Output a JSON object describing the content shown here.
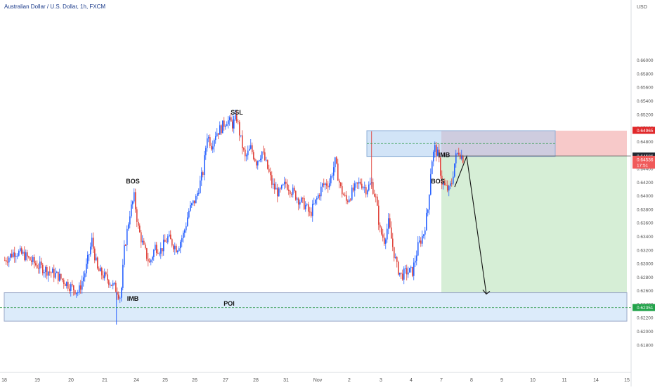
{
  "header": {
    "symbol_title": "Australian Dollar / U.S. Dollar, 1h, FXCM"
  },
  "price_axis": {
    "currency": "USD"
  },
  "badges": {
    "stop_price": "0.64965",
    "last_price": "0.64586",
    "current_price": "0.64536",
    "countdown": "17:51",
    "target_price": "0.62351"
  },
  "colors": {
    "up_candle": "#2962ff",
    "down_candle": "#e0453d",
    "stop_zone": "#f7c9c9",
    "profit_zone": "#d6eed6",
    "poi_zone": "#dcebfa",
    "stop_badge": "#e0282a",
    "last_badge": "#222831",
    "current_badge": "#f05a5a",
    "target_badge": "#22a34a"
  },
  "chart_data": {
    "type": "candlestick",
    "title": "Australian Dollar / U.S. Dollar, 1h, FXCM",
    "ylabel": "USD",
    "ylim": [
      0.6172,
      0.6682
    ],
    "y_ticks": [
      "0.66000",
      "0.65800",
      "0.65600",
      "0.65400",
      "0.65200",
      "0.65000",
      "0.64800",
      "0.64600",
      "0.64400",
      "0.64200",
      "0.64000",
      "0.63800",
      "0.63600",
      "0.63400",
      "0.63200",
      "0.63000",
      "0.62800",
      "0.62600",
      "0.62400",
      "0.62200",
      "0.62000",
      "0.61800"
    ],
    "x_ticks": [
      "18",
      "19",
      "20",
      "21",
      "24",
      "25",
      "26",
      "27",
      "28",
      "31",
      "Nov",
      "2",
      "3",
      "4",
      "7",
      "8",
      "9",
      "10",
      "11",
      "14",
      "15"
    ],
    "x_tick_index": [
      0,
      47,
      95,
      143,
      188,
      229,
      271,
      315,
      358,
      401,
      446,
      491,
      536,
      579,
      622,
      665,
      708,
      752,
      797,
      842,
      886
    ],
    "path_keypoints": [
      [
        0,
        0.6305
      ],
      [
        15,
        0.6318
      ],
      [
        28,
        0.6312
      ],
      [
        45,
        0.6298
      ],
      [
        60,
        0.629
      ],
      [
        75,
        0.6282
      ],
      [
        95,
        0.6265
      ],
      [
        105,
        0.6258
      ],
      [
        115,
        0.629
      ],
      [
        124,
        0.6334
      ],
      [
        132,
        0.629
      ],
      [
        148,
        0.6275
      ],
      [
        160,
        0.626
      ],
      [
        165,
        0.625
      ],
      [
        170,
        0.632
      ],
      [
        178,
        0.6375
      ],
      [
        184,
        0.6398
      ],
      [
        190,
        0.6352
      ],
      [
        198,
        0.6322
      ],
      [
        206,
        0.63
      ],
      [
        214,
        0.6325
      ],
      [
        222,
        0.632
      ],
      [
        232,
        0.6338
      ],
      [
        245,
        0.6322
      ],
      [
        255,
        0.6345
      ],
      [
        262,
        0.6378
      ],
      [
        272,
        0.6396
      ],
      [
        282,
        0.6435
      ],
      [
        288,
        0.649
      ],
      [
        294,
        0.6475
      ],
      [
        300,
        0.6492
      ],
      [
        308,
        0.65
      ],
      [
        316,
        0.6512
      ],
      [
        324,
        0.6505
      ],
      [
        330,
        0.6515
      ],
      [
        336,
        0.6482
      ],
      [
        342,
        0.6455
      ],
      [
        350,
        0.647
      ],
      [
        358,
        0.645
      ],
      [
        366,
        0.6465
      ],
      [
        374,
        0.644
      ],
      [
        381,
        0.6415
      ],
      [
        390,
        0.6403
      ],
      [
        400,
        0.6418
      ],
      [
        408,
        0.6408
      ],
      [
        418,
        0.6395
      ],
      [
        428,
        0.6385
      ],
      [
        434,
        0.6372
      ],
      [
        444,
        0.6395
      ],
      [
        452,
        0.6415
      ],
      [
        462,
        0.642
      ],
      [
        470,
        0.645
      ],
      [
        478,
        0.641
      ],
      [
        486,
        0.6392
      ],
      [
        496,
        0.6408
      ],
      [
        506,
        0.642
      ],
      [
        514,
        0.641
      ],
      [
        522,
        0.6418
      ],
      [
        528,
        0.6395
      ],
      [
        534,
        0.6348
      ],
      [
        540,
        0.6335
      ],
      [
        546,
        0.636
      ],
      [
        552,
        0.6325
      ],
      [
        558,
        0.6295
      ],
      [
        564,
        0.6282
      ],
      [
        572,
        0.6288
      ],
      [
        580,
        0.6288
      ],
      [
        588,
        0.6325
      ],
      [
        596,
        0.6345
      ],
      [
        602,
        0.638
      ],
      [
        607,
        0.645
      ],
      [
        612,
        0.647
      ],
      [
        617,
        0.6458
      ],
      [
        622,
        0.642
      ],
      [
        627,
        0.6412
      ],
      [
        632,
        0.6408
      ],
      [
        636,
        0.642
      ],
      [
        641,
        0.6455
      ],
      [
        646,
        0.6466
      ],
      [
        652,
        0.6455
      ]
    ],
    "annotations": [
      {
        "label": "SSL",
        "price": 0.652,
        "index": 331
      },
      {
        "label": "BOS",
        "price": 0.6418,
        "index": 183
      },
      {
        "label": "IMB",
        "price": 0.6245,
        "index": 183
      },
      {
        "label": "POI",
        "price": 0.6238,
        "index": 320
      },
      {
        "label": "IMB",
        "price": 0.6457,
        "index": 626
      },
      {
        "label": "BOS",
        "price": 0.6418,
        "index": 617
      }
    ],
    "zones": {
      "poi": {
        "top": 0.6257,
        "bottom": 0.6215,
        "start_index": 0,
        "end_index": 886
      },
      "supply": {
        "top": 0.6496,
        "bottom": 0.6458,
        "start_index": 516,
        "end_index": 784
      },
      "stop": {
        "top": 0.6496,
        "bottom": 0.64586,
        "start_index": 622,
        "end_index": 886
      },
      "profit": {
        "top": 0.64586,
        "bottom": 0.62351,
        "start_index": 622,
        "end_index": 886
      }
    },
    "level_lines": {
      "target": 0.62351,
      "supply_mid": 0.6477,
      "entry": 0.64586
    },
    "projection": [
      [
        641,
        0.6413
      ],
      [
        658,
        0.6458
      ],
      [
        686,
        0.6255
      ]
    ],
    "grid": false,
    "legend": "none"
  }
}
